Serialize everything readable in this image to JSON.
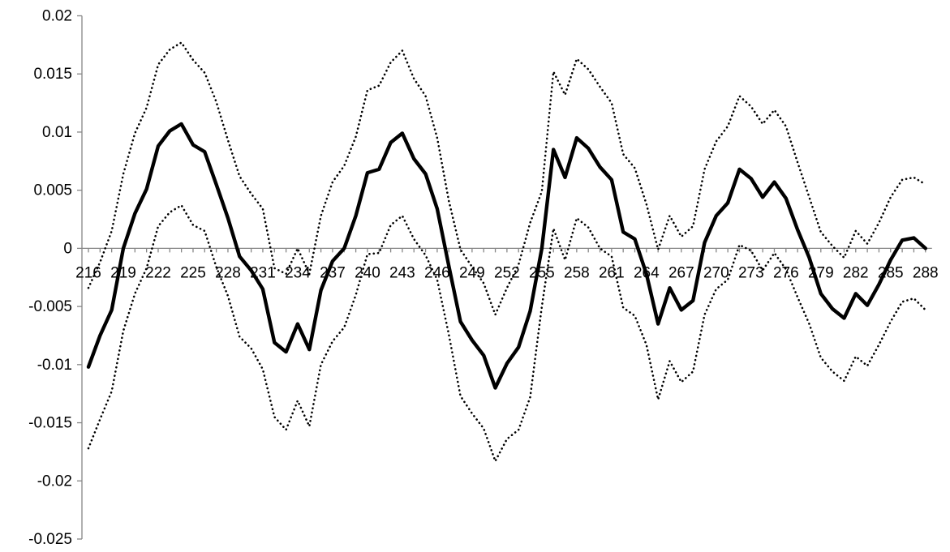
{
  "chart_data": {
    "type": "line",
    "title": "",
    "xlabel": "",
    "ylabel": "",
    "ylim": [
      -0.025,
      0.02
    ],
    "y_ticks": [
      "0.02",
      "0.015",
      "0.01",
      "0.005",
      "0",
      "-0.005",
      "-0.01",
      "-0.015",
      "-0.02",
      "-0.025"
    ],
    "x_ticks": [
      "216",
      "219",
      "222",
      "225",
      "228",
      "231",
      "234",
      "237",
      "240",
      "243",
      "246",
      "249",
      "252",
      "255",
      "258",
      "261",
      "264",
      "267",
      "270",
      "273",
      "276",
      "279",
      "282",
      "285",
      "288"
    ],
    "grid": false,
    "legend": "none",
    "x": [
      216,
      217,
      218,
      219,
      220,
      221,
      222,
      223,
      224,
      225,
      226,
      227,
      228,
      229,
      230,
      231,
      232,
      233,
      234,
      235,
      236,
      237,
      238,
      239,
      240,
      241,
      242,
      243,
      244,
      245,
      246,
      247,
      248,
      249,
      250,
      251,
      252,
      253,
      254,
      255,
      256,
      257,
      258,
      259,
      260,
      261,
      262,
      263,
      264,
      265,
      266,
      267,
      268,
      269,
      270,
      271,
      272,
      273,
      274,
      275,
      276,
      277,
      278,
      279,
      280,
      281,
      282,
      283,
      284,
      285,
      286,
      287,
      288
    ],
    "series": [
      {
        "style": "solid",
        "color": "#000000",
        "values": [
          -0.0102,
          -0.0075,
          -0.0053,
          0.0,
          0.003,
          0.0051,
          0.0088,
          0.0101,
          0.0107,
          0.0089,
          0.0083,
          0.0055,
          0.0026,
          -0.0007,
          -0.0019,
          -0.0035,
          -0.0081,
          -0.0089,
          -0.0065,
          -0.0087,
          -0.0036,
          -0.0011,
          0.0,
          0.0028,
          0.0065,
          0.0068,
          0.0091,
          0.0099,
          0.0077,
          0.0064,
          0.0034,
          -0.0015,
          -0.0063,
          -0.0079,
          -0.0092,
          -0.012,
          -0.0099,
          -0.0085,
          -0.0054,
          0.0,
          0.0085,
          0.0061,
          0.0095,
          0.0086,
          0.007,
          0.0059,
          0.0014,
          0.0008,
          -0.0022,
          -0.0065,
          -0.0034,
          -0.0053,
          -0.0045,
          0.0005,
          0.0028,
          0.0039,
          0.0068,
          0.006,
          0.0044,
          0.0057,
          0.0043,
          0.0016,
          -0.0008,
          -0.0039,
          -0.0052,
          -0.006,
          -0.0039,
          -0.0049,
          -0.0031,
          -0.001,
          0.0007,
          0.0009,
          0.0
        ]
      },
      {
        "style": "dotted",
        "color": "#000000",
        "values": [
          -0.0034,
          -0.0012,
          0.0015,
          0.0064,
          0.0099,
          0.0121,
          0.0158,
          0.0171,
          0.0177,
          0.0162,
          0.0151,
          0.0126,
          0.0093,
          0.0062,
          0.0047,
          0.0034,
          -0.0017,
          -0.0022,
          0.0,
          -0.0022,
          0.0028,
          0.0057,
          0.0071,
          0.0096,
          0.0136,
          0.014,
          0.016,
          0.017,
          0.0146,
          0.0131,
          0.0095,
          0.0041,
          -0.0001,
          -0.0016,
          -0.003,
          -0.0057,
          -0.0034,
          -0.0014,
          0.0022,
          0.0049,
          0.0152,
          0.0132,
          0.0163,
          0.0154,
          0.0139,
          0.0125,
          0.0081,
          0.0069,
          0.0038,
          -0.0001,
          0.0028,
          0.001,
          0.0019,
          0.0068,
          0.0092,
          0.0105,
          0.0131,
          0.0122,
          0.0107,
          0.0119,
          0.0105,
          0.0074,
          0.0044,
          0.0014,
          0.0002,
          -0.0008,
          0.0015,
          0.0004,
          0.0022,
          0.0044,
          0.0059,
          0.0061,
          0.0055
        ]
      },
      {
        "style": "dotted",
        "color": "#000000",
        "values": [
          -0.0172,
          -0.0147,
          -0.0123,
          -0.0071,
          -0.0039,
          -0.0017,
          0.0019,
          0.0031,
          0.0037,
          0.002,
          0.0015,
          -0.0016,
          -0.0041,
          -0.0076,
          -0.0086,
          -0.0104,
          -0.0145,
          -0.0156,
          -0.0131,
          -0.0153,
          -0.01,
          -0.008,
          -0.0068,
          -0.004,
          -0.0005,
          -0.0004,
          0.002,
          0.0028,
          0.0008,
          -0.0006,
          -0.0027,
          -0.0074,
          -0.0127,
          -0.0142,
          -0.0155,
          -0.0183,
          -0.0164,
          -0.0156,
          -0.0128,
          -0.005,
          0.0017,
          -0.001,
          0.0026,
          0.0018,
          0.0,
          -0.0007,
          -0.0051,
          -0.0058,
          -0.0083,
          -0.013,
          -0.0097,
          -0.0115,
          -0.0106,
          -0.0057,
          -0.0035,
          -0.0027,
          0.0003,
          -0.0002,
          -0.0019,
          -0.0004,
          -0.0018,
          -0.0042,
          -0.0065,
          -0.0094,
          -0.0106,
          -0.0114,
          -0.0093,
          -0.0101,
          -0.0083,
          -0.0063,
          -0.0046,
          -0.0043,
          -0.0053
        ]
      }
    ]
  }
}
